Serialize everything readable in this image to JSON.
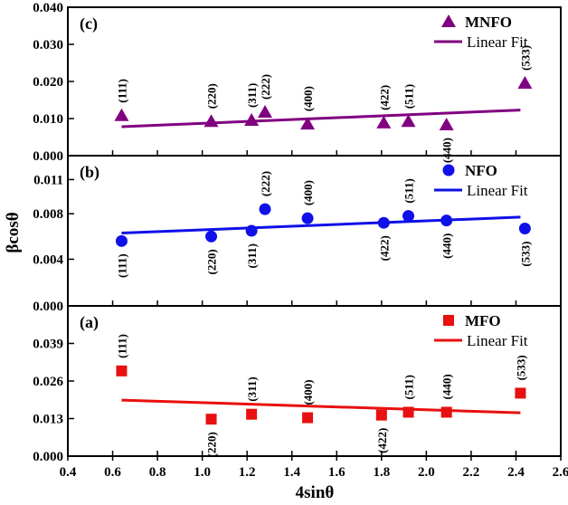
{
  "colors": {
    "MNFO": "#800080",
    "NFO": "#1010e8",
    "MFO": "#e81010",
    "axis": "#000000"
  },
  "chart_data": {
    "type": "scatter",
    "xlabel": "4sinθ",
    "ylabel": "βcosθ",
    "xlim": [
      0.4,
      2.6
    ],
    "xticks": [
      "0.4",
      "0.6",
      "0.8",
      "1.0",
      "1.2",
      "1.4",
      "1.6",
      "1.8",
      "2.0",
      "2.2",
      "2.4",
      "2.6"
    ],
    "xtick_values": [
      0.4,
      0.6,
      0.8,
      1.0,
      1.2,
      1.4,
      1.6,
      1.8,
      2.0,
      2.2,
      2.4,
      2.6
    ],
    "panels": [
      {
        "id": "c",
        "label": "(c)",
        "series_name": "MNFO",
        "fit_name": "Linear Fit",
        "marker": "triangle",
        "color_key": "MNFO",
        "ylim": [
          0.0,
          0.04
        ],
        "yticks": [
          "0.000",
          "0.010",
          "0.020",
          "0.030",
          "0.040"
        ],
        "ytick_values": [
          0.0,
          0.01,
          0.02,
          0.03,
          0.04
        ],
        "points": [
          {
            "x": 0.64,
            "y": 0.0108,
            "hkl": "(111)",
            "label_above": true
          },
          {
            "x": 1.04,
            "y": 0.0092,
            "hkl": "(220)",
            "label_above": true
          },
          {
            "x": 1.22,
            "y": 0.0095,
            "hkl": "(311)",
            "label_above": true
          },
          {
            "x": 1.28,
            "y": 0.0117,
            "hkl": "(222)",
            "label_above": true
          },
          {
            "x": 1.47,
            "y": 0.0085,
            "hkl": "(400)",
            "label_above": true
          },
          {
            "x": 1.81,
            "y": 0.0088,
            "hkl": "(422)",
            "label_above": true
          },
          {
            "x": 1.92,
            "y": 0.0092,
            "hkl": "(511)",
            "label_above": true
          },
          {
            "x": 2.09,
            "y": 0.0083,
            "hkl": "(440)",
            "label_above": false
          },
          {
            "x": 2.44,
            "y": 0.0195,
            "hkl": "(533)",
            "label_above": true
          }
        ],
        "fit": {
          "x": [
            0.64,
            2.42
          ],
          "y": [
            0.0078,
            0.0123
          ]
        }
      },
      {
        "id": "b",
        "label": "(b)",
        "series_name": "NFO",
        "fit_name": "Linear Fit",
        "marker": "circle",
        "color_key": "NFO",
        "ylim": [
          0.0,
          0.0132
        ],
        "yticks": [
          "0.000",
          "0.004",
          "0.008",
          "0.011"
        ],
        "ytick_values": [
          0.0,
          0.0041,
          0.0081,
          0.0111
        ],
        "points": [
          {
            "x": 0.64,
            "y": 0.0057,
            "hkl": "(111)",
            "label_above": false
          },
          {
            "x": 1.04,
            "y": 0.0061,
            "hkl": "(220)",
            "label_above": false
          },
          {
            "x": 1.22,
            "y": 0.0066,
            "hkl": "(311)",
            "label_above": false
          },
          {
            "x": 1.28,
            "y": 0.0085,
            "hkl": "(222)",
            "label_above": true
          },
          {
            "x": 1.47,
            "y": 0.0077,
            "hkl": "(400)",
            "label_above": true
          },
          {
            "x": 1.81,
            "y": 0.0073,
            "hkl": "(422)",
            "label_above": false
          },
          {
            "x": 1.92,
            "y": 0.0079,
            "hkl": "(511)",
            "label_above": true
          },
          {
            "x": 2.09,
            "y": 0.0075,
            "hkl": "(440)",
            "label_above": false
          },
          {
            "x": 2.44,
            "y": 0.0068,
            "hkl": "(533)",
            "label_above": false
          }
        ],
        "fit": {
          "x": [
            0.64,
            2.42
          ],
          "y": [
            0.0064,
            0.0078
          ]
        }
      },
      {
        "id": "a",
        "label": "(a)",
        "series_name": "MFO",
        "fit_name": "Linear Fit",
        "marker": "square",
        "color_key": "MFO",
        "ylim": [
          0.0,
          0.052
        ],
        "yticks": [
          "0.000",
          "0.013",
          "0.026",
          "0.039"
        ],
        "ytick_values": [
          0.0,
          0.013,
          0.026,
          0.039
        ],
        "points": [
          {
            "x": 0.64,
            "y": 0.0295,
            "hkl": "(111)",
            "label_above": true
          },
          {
            "x": 1.04,
            "y": 0.0128,
            "hkl": "(220)",
            "label_above": false
          },
          {
            "x": 1.22,
            "y": 0.0145,
            "hkl": "(311)",
            "label_above": true
          },
          {
            "x": 1.47,
            "y": 0.0133,
            "hkl": "(400)",
            "label_above": true
          },
          {
            "x": 1.8,
            "y": 0.0142,
            "hkl": "(422)",
            "label_above": false
          },
          {
            "x": 1.92,
            "y": 0.0152,
            "hkl": "(511)",
            "label_above": true
          },
          {
            "x": 2.09,
            "y": 0.0152,
            "hkl": "(440)",
            "label_above": true
          },
          {
            "x": 2.42,
            "y": 0.0218,
            "hkl": "(533)",
            "label_above": true
          }
        ],
        "fit": {
          "x": [
            0.64,
            2.42
          ],
          "y": [
            0.0194,
            0.015
          ]
        }
      }
    ]
  }
}
